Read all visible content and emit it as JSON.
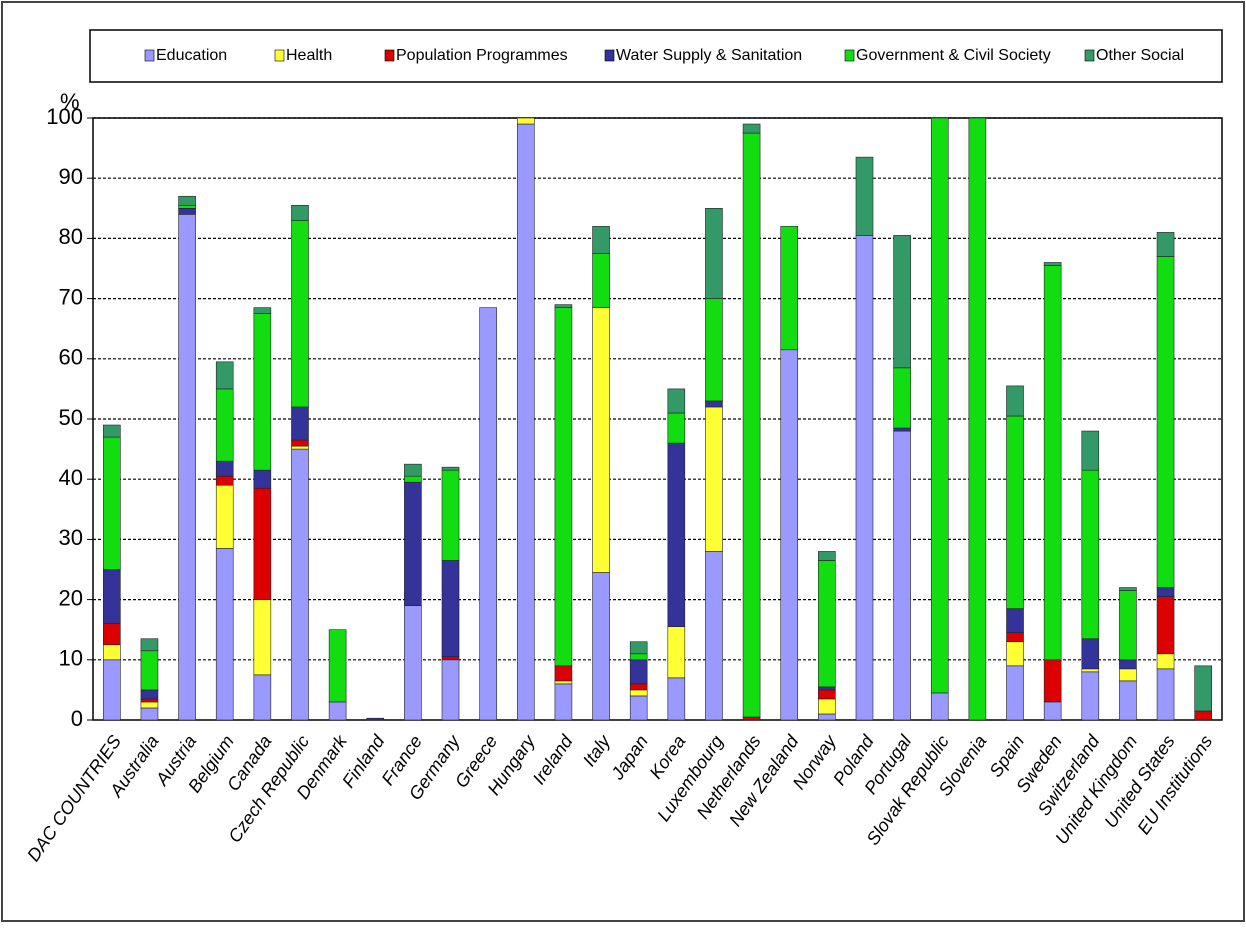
{
  "chart_data": {
    "type": "stacked_bar",
    "y_label": "%",
    "categories": [
      "DAC COUNTRIES",
      "Australia",
      "Austria",
      "Belgium",
      "Canada",
      "Czech Republic",
      "Denmark",
      "Finland",
      "France",
      "Germany",
      "Greece",
      "Hungary",
      "Ireland",
      "Italy",
      "Japan",
      "Korea",
      "Luxembourg",
      "Netherlands",
      "New Zealand",
      "Norway",
      "Poland",
      "Portugal",
      "Slovak Republic",
      "Slovenia",
      "Spain",
      "Sweden",
      "Switzerland",
      "United Kingdom",
      "United States",
      "EU Institutions"
    ],
    "series": [
      {
        "name": "Education",
        "color": "#9999ff",
        "values": [
          10,
          2,
          84,
          28.5,
          7.5,
          45,
          3,
          0,
          19,
          10,
          68.5,
          99,
          6,
          24.5,
          4,
          7,
          28,
          0,
          61.5,
          1,
          80.5,
          48,
          4.5,
          0,
          9,
          3,
          8,
          6.5,
          8.5,
          0
        ]
      },
      {
        "name": "Health",
        "color": "#ffff33",
        "values": [
          2.5,
          1,
          0,
          10.5,
          12.5,
          0.5,
          0,
          0,
          0,
          0,
          0,
          1,
          0.5,
          44,
          1,
          8.5,
          24,
          0,
          0,
          2.5,
          0,
          0,
          0,
          0,
          4,
          0,
          0.5,
          2,
          2.5,
          0
        ]
      },
      {
        "name": "Population Programmes",
        "color": "#dd0000",
        "values": [
          3.5,
          0.5,
          0,
          1.5,
          18.5,
          1,
          0,
          0,
          0,
          0.5,
          0,
          0,
          2.5,
          0,
          1,
          0,
          0,
          0.5,
          0,
          1.5,
          0,
          0,
          0,
          0,
          1.5,
          7,
          0,
          0,
          9.5,
          1.5
        ]
      },
      {
        "name": "Water Supply & Sanitation",
        "color": "#333399",
        "values": [
          9,
          1.5,
          1,
          2.5,
          3,
          5.5,
          0,
          0.3,
          20.5,
          16,
          0,
          0,
          0,
          0,
          4,
          30.5,
          1,
          0,
          0,
          0.5,
          0,
          0.5,
          0,
          0,
          4,
          0,
          5,
          1.5,
          1.5,
          0
        ]
      },
      {
        "name": "Government & Civil Society",
        "color": "#11dd11",
        "values": [
          22,
          6.5,
          0.5,
          12,
          26,
          31,
          12,
          0,
          1,
          15,
          0,
          0,
          59.5,
          9,
          1,
          5,
          17,
          97,
          20.5,
          21,
          0,
          10,
          95.5,
          100,
          32,
          65.5,
          28,
          11.5,
          55,
          0
        ]
      },
      {
        "name": "Other Social",
        "color": "#339966",
        "values": [
          2,
          2,
          1.5,
          4.5,
          1,
          2.5,
          0,
          0,
          2,
          0.5,
          0,
          0,
          0.5,
          4.5,
          2,
          4,
          15,
          1.5,
          0,
          1.5,
          13,
          22,
          0,
          0,
          5,
          0.5,
          6.5,
          0.5,
          4,
          7.5
        ]
      }
    ],
    "ylim": [
      0,
      100
    ],
    "yticks": [
      0,
      10,
      20,
      30,
      40,
      50,
      60,
      70,
      80,
      90,
      100
    ],
    "grid": true
  }
}
